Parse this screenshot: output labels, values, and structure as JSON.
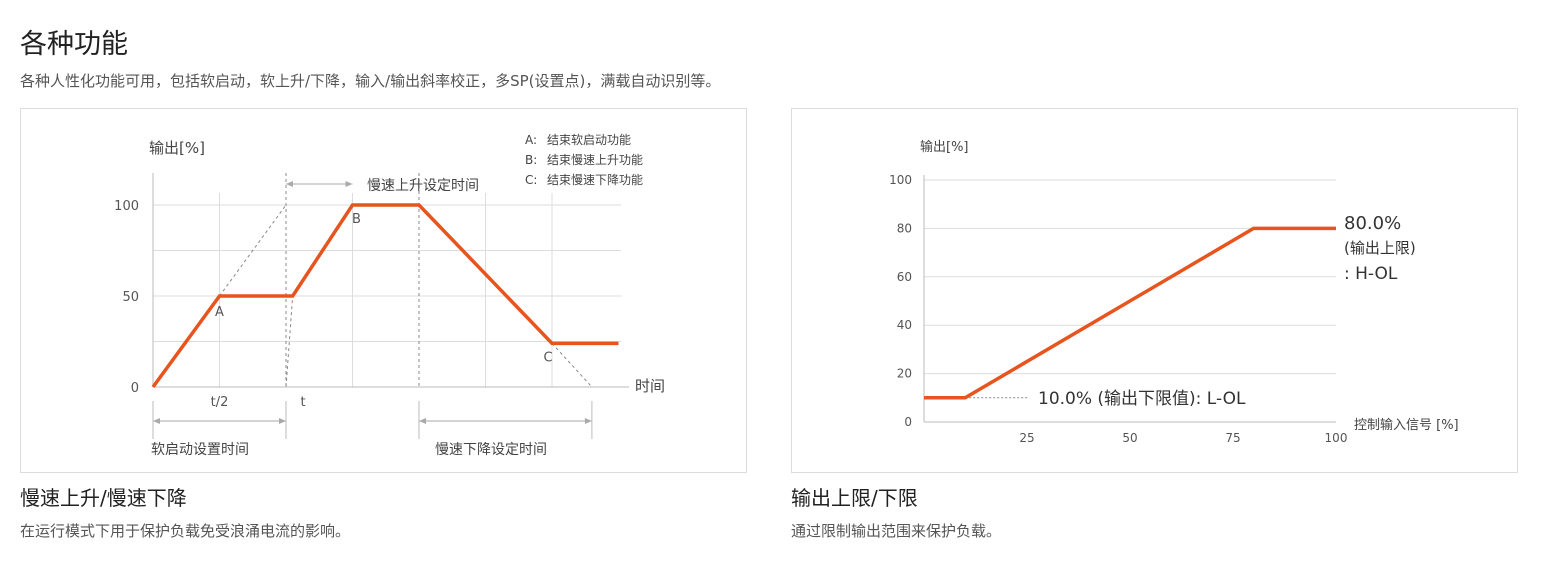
{
  "header": {
    "title": "各种功能",
    "subtitle": "各种人性化功能可用，包括软启动，软上升/下降，输入/输出斜率校正，多SP(设置点)，满载自动识别等。"
  },
  "captions": {
    "left": {
      "title": "慢速上升/慢速下降",
      "text": "在运行模式下用于保护负载免受浪涌电流的影响。"
    },
    "right": {
      "title": "输出上限/下限",
      "text": "通过限制输出范围来保护负载。"
    }
  },
  "colors": {
    "series": "#e8541e",
    "grid": "#dddddd",
    "axis": "#bbbbbb",
    "dashed": "#888888",
    "text": "#444444"
  },
  "chart_data": [
    {
      "type": "line",
      "ylabel": "输出[%]",
      "xlabel": "时间",
      "yticks": [
        "0",
        "50",
        "100"
      ],
      "xticks": [
        "t/2",
        "t"
      ],
      "ylim": [
        0,
        100
      ],
      "grid": true,
      "legend": [
        {
          "key": "A:",
          "text": "结束软启动功能"
        },
        {
          "key": "B:",
          "text": "结束慢速上升功能"
        },
        {
          "key": "C:",
          "text": "结束慢速下降功能"
        }
      ],
      "point_labels": [
        "A",
        "B",
        "C"
      ],
      "span_labels": {
        "soft_start": "软启动设置时间",
        "ramp_up": "慢速上升设定时间",
        "ramp_down": "慢速下降设定时间"
      },
      "series_points": [
        {
          "t": 0,
          "y": 0
        },
        {
          "t": 0.5,
          "y": 50
        },
        {
          "t": 1.05,
          "y": 50
        },
        {
          "t": 1.5,
          "y": 100
        },
        {
          "t": 2.0,
          "y": 100
        },
        {
          "t": 3.0,
          "y": 24
        },
        {
          "t": 3.5,
          "y": 24
        }
      ]
    },
    {
      "type": "line",
      "ylabel": "输出[%]",
      "xlabel": "控制输入信号 [%]",
      "xticks": [
        "25",
        "50",
        "75",
        "100"
      ],
      "yticks": [
        "0",
        "20",
        "40",
        "60",
        "80",
        "100"
      ],
      "xlim": [
        0,
        100
      ],
      "ylim": [
        0,
        100
      ],
      "grid": true,
      "series_points": [
        {
          "x": 0,
          "y": 10
        },
        {
          "x": 10,
          "y": 10
        },
        {
          "x": 80,
          "y": 80
        },
        {
          "x": 100,
          "y": 80
        }
      ],
      "annotations": {
        "upper_value": "80.0%",
        "upper_label": "(输出上限)",
        "upper_code": ": H-OL",
        "lower_text": "10.0% (输出下限值): L-OL"
      }
    }
  ]
}
